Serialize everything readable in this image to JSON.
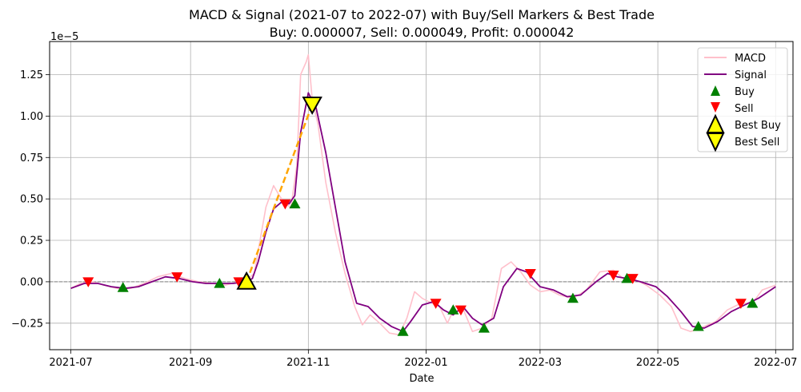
{
  "chart_data": {
    "type": "line",
    "title": "MACD & Signal (2021-07 to 2022-07) with Buy/Sell Markers & Best Trade",
    "subtitle": "Buy: 0.000007, Sell: 0.000049, Profit: 0.000042",
    "xlabel": "Date",
    "ylabel": "",
    "y_offset_label": "1e−5",
    "xlim": [
      "2021-06-20",
      "2022-07-10"
    ],
    "ylim": [
      -0.41,
      1.45
    ],
    "x_ticks": [
      "2021-07",
      "2021-09",
      "2021-11",
      "2022-01",
      "2022-03",
      "2022-05",
      "2022-07"
    ],
    "x_tick_dates": [
      "2021-07-01",
      "2021-09-01",
      "2021-11-01",
      "2022-01-01",
      "2022-03-01",
      "2022-05-01",
      "2022-07-01"
    ],
    "y_ticks": [
      -0.25,
      0.0,
      0.25,
      0.5,
      0.75,
      1.0,
      1.25
    ],
    "y_tick_labels": [
      "−0.25",
      "0.00",
      "0.25",
      "0.50",
      "0.75",
      "1.00",
      "1.25"
    ],
    "grid": true,
    "legend_position": "top-right",
    "legend": [
      "MACD",
      "Signal",
      "Buy",
      "Sell",
      "Best Buy",
      "Best Sell"
    ],
    "colors": {
      "macd": "#ffc0cb",
      "signal": "#800080",
      "buy": "#008000",
      "sell": "#ff0000",
      "best": "#ffff00",
      "trade_line": "#ffa500",
      "zero_line": "#808080",
      "grid": "#b0b0b0"
    },
    "series": [
      {
        "name": "MACD",
        "points": [
          [
            "2021-07-01",
            -0.04
          ],
          [
            "2021-07-06",
            -0.01
          ],
          [
            "2021-07-12",
            0.0
          ],
          [
            "2021-07-18",
            -0.02
          ],
          [
            "2021-07-25",
            -0.04
          ],
          [
            "2021-08-01",
            -0.04
          ],
          [
            "2021-08-08",
            -0.01
          ],
          [
            "2021-08-15",
            0.03
          ],
          [
            "2021-08-22",
            0.05
          ],
          [
            "2021-08-29",
            0.02
          ],
          [
            "2021-09-05",
            0.0
          ],
          [
            "2021-09-12",
            -0.01
          ],
          [
            "2021-09-19",
            -0.02
          ],
          [
            "2021-09-26",
            0.0
          ],
          [
            "2021-09-30",
            0.01
          ],
          [
            "2021-10-04",
            0.05
          ],
          [
            "2021-10-07",
            0.25
          ],
          [
            "2021-10-10",
            0.45
          ],
          [
            "2021-10-14",
            0.58
          ],
          [
            "2021-10-17",
            0.52
          ],
          [
            "2021-10-20",
            0.47
          ],
          [
            "2021-10-23",
            0.45
          ],
          [
            "2021-10-26",
            0.7
          ],
          [
            "2021-10-28",
            1.25
          ],
          [
            "2021-10-31",
            1.33
          ],
          [
            "2021-11-01",
            1.37
          ],
          [
            "2021-11-03",
            1.1
          ],
          [
            "2021-11-06",
            0.95
          ],
          [
            "2021-11-10",
            0.6
          ],
          [
            "2021-11-15",
            0.3
          ],
          [
            "2021-11-20",
            0.05
          ],
          [
            "2021-11-25",
            -0.15
          ],
          [
            "2021-11-29",
            -0.26
          ],
          [
            "2021-12-03",
            -0.2
          ],
          [
            "2021-12-08",
            -0.25
          ],
          [
            "2021-12-13",
            -0.31
          ],
          [
            "2021-12-18",
            -0.32
          ],
          [
            "2021-12-22",
            -0.22
          ],
          [
            "2021-12-26",
            -0.06
          ],
          [
            "2021-12-30",
            -0.1
          ],
          [
            "2022-01-04",
            -0.13
          ],
          [
            "2022-01-08",
            -0.15
          ],
          [
            "2022-01-12",
            -0.25
          ],
          [
            "2022-01-16",
            -0.15
          ],
          [
            "2022-01-20",
            -0.16
          ],
          [
            "2022-01-25",
            -0.3
          ],
          [
            "2022-01-30",
            -0.28
          ],
          [
            "2022-02-04",
            -0.22
          ],
          [
            "2022-02-09",
            0.08
          ],
          [
            "2022-02-14",
            0.12
          ],
          [
            "2022-02-19",
            0.06
          ],
          [
            "2022-02-24",
            -0.02
          ],
          [
            "2022-03-01",
            -0.06
          ],
          [
            "2022-03-06",
            -0.05
          ],
          [
            "2022-03-11",
            -0.08
          ],
          [
            "2022-03-18",
            -0.1
          ],
          [
            "2022-03-25",
            -0.05
          ],
          [
            "2022-04-01",
            0.06
          ],
          [
            "2022-04-08",
            0.07
          ],
          [
            "2022-04-13",
            0.02
          ],
          [
            "2022-04-18",
            0.02
          ],
          [
            "2022-04-25",
            -0.02
          ],
          [
            "2022-05-02",
            -0.08
          ],
          [
            "2022-05-08",
            -0.15
          ],
          [
            "2022-05-13",
            -0.28
          ],
          [
            "2022-05-18",
            -0.3
          ],
          [
            "2022-05-23",
            -0.28
          ],
          [
            "2022-05-31",
            -0.24
          ],
          [
            "2022-06-06",
            -0.17
          ],
          [
            "2022-06-13",
            -0.13
          ],
          [
            "2022-06-19",
            -0.13
          ],
          [
            "2022-06-24",
            -0.05
          ],
          [
            "2022-07-01",
            -0.02
          ]
        ]
      },
      {
        "name": "Signal",
        "points": [
          [
            "2021-07-01",
            -0.04
          ],
          [
            "2021-07-08",
            -0.01
          ],
          [
            "2021-07-15",
            -0.01
          ],
          [
            "2021-07-22",
            -0.03
          ],
          [
            "2021-07-29",
            -0.04
          ],
          [
            "2021-08-05",
            -0.03
          ],
          [
            "2021-08-12",
            0.0
          ],
          [
            "2021-08-19",
            0.03
          ],
          [
            "2021-08-26",
            0.02
          ],
          [
            "2021-09-02",
            0.0
          ],
          [
            "2021-09-09",
            -0.01
          ],
          [
            "2021-09-16",
            -0.01
          ],
          [
            "2021-09-23",
            -0.01
          ],
          [
            "2021-09-30",
            0.0
          ],
          [
            "2021-10-03",
            0.02
          ],
          [
            "2021-10-06",
            0.12
          ],
          [
            "2021-10-10",
            0.3
          ],
          [
            "2021-10-14",
            0.44
          ],
          [
            "2021-10-18",
            0.48
          ],
          [
            "2021-10-22",
            0.47
          ],
          [
            "2021-10-25",
            0.52
          ],
          [
            "2021-10-28",
            0.9
          ],
          [
            "2021-11-01",
            1.14
          ],
          [
            "2021-11-05",
            1.05
          ],
          [
            "2021-11-10",
            0.78
          ],
          [
            "2021-11-15",
            0.45
          ],
          [
            "2021-11-20",
            0.12
          ],
          [
            "2021-11-26",
            -0.13
          ],
          [
            "2021-12-02",
            -0.15
          ],
          [
            "2021-12-08",
            -0.22
          ],
          [
            "2021-12-14",
            -0.27
          ],
          [
            "2021-12-20",
            -0.3
          ],
          [
            "2021-12-24",
            -0.24
          ],
          [
            "2021-12-30",
            -0.14
          ],
          [
            "2022-01-05",
            -0.12
          ],
          [
            "2022-01-10",
            -0.17
          ],
          [
            "2022-01-15",
            -0.2
          ],
          [
            "2022-01-20",
            -0.15
          ],
          [
            "2022-01-25",
            -0.22
          ],
          [
            "2022-01-30",
            -0.26
          ],
          [
            "2022-02-05",
            -0.22
          ],
          [
            "2022-02-10",
            -0.03
          ],
          [
            "2022-02-17",
            0.08
          ],
          [
            "2022-02-22",
            0.06
          ],
          [
            "2022-03-01",
            -0.03
          ],
          [
            "2022-03-08",
            -0.05
          ],
          [
            "2022-03-15",
            -0.09
          ],
          [
            "2022-03-22",
            -0.08
          ],
          [
            "2022-03-30",
            0.0
          ],
          [
            "2022-04-05",
            0.05
          ],
          [
            "2022-04-10",
            0.03
          ],
          [
            "2022-04-15",
            0.02
          ],
          [
            "2022-04-22",
            0.0
          ],
          [
            "2022-04-30",
            -0.03
          ],
          [
            "2022-05-06",
            -0.09
          ],
          [
            "2022-05-13",
            -0.18
          ],
          [
            "2022-05-19",
            -0.27
          ],
          [
            "2022-05-25",
            -0.28
          ],
          [
            "2022-06-01",
            -0.24
          ],
          [
            "2022-06-08",
            -0.18
          ],
          [
            "2022-06-15",
            -0.14
          ],
          [
            "2022-06-22",
            -0.1
          ],
          [
            "2022-07-01",
            -0.03
          ]
        ]
      }
    ],
    "buy_points": [
      [
        "2021-07-28",
        -0.035
      ],
      [
        "2021-09-16",
        -0.01
      ],
      [
        "2021-10-25",
        0.47
      ],
      [
        "2021-12-20",
        -0.3
      ],
      [
        "2022-01-15",
        -0.17
      ],
      [
        "2022-01-31",
        -0.28
      ],
      [
        "2022-03-18",
        -0.1
      ],
      [
        "2022-04-15",
        0.02
      ],
      [
        "2022-05-22",
        -0.27
      ],
      [
        "2022-06-19",
        -0.13
      ]
    ],
    "sell_points": [
      [
        "2021-07-10",
        0.0
      ],
      [
        "2021-08-25",
        0.03
      ],
      [
        "2021-09-26",
        0.0
      ],
      [
        "2021-10-20",
        0.47
      ],
      [
        "2022-01-06",
        -0.13
      ],
      [
        "2022-01-19",
        -0.17
      ],
      [
        "2022-02-24",
        0.05
      ],
      [
        "2022-04-08",
        0.04
      ],
      [
        "2022-04-18",
        0.02
      ],
      [
        "2022-06-13",
        -0.13
      ]
    ],
    "best_buy": [
      "2021-09-30",
      0.0
    ],
    "best_sell": [
      "2021-11-03",
      1.07
    ]
  }
}
